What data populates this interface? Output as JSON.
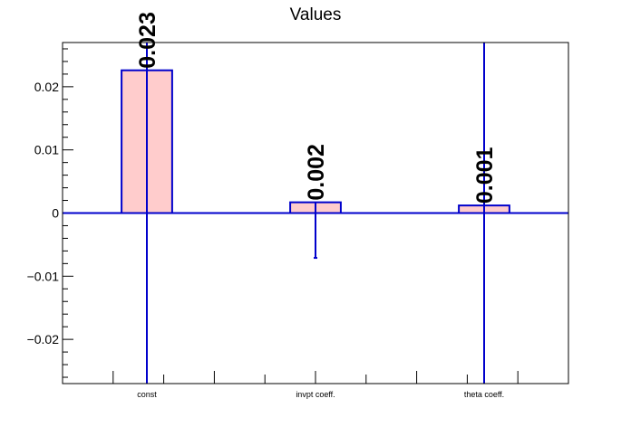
{
  "chart_data": {
    "type": "bar",
    "title": "Values",
    "categories": [
      "const",
      "invpt coeff.",
      "theta coeff."
    ],
    "values": [
      0.0226,
      0.0017,
      0.0012
    ],
    "value_labels": [
      "0.023",
      "0.002",
      "0.001"
    ],
    "error_low": [
      -0.027,
      -0.0071,
      -0.027
    ],
    "error_high": [
      0.027,
      0.0017,
      0.027
    ],
    "ylim": [
      -0.027,
      0.027
    ],
    "yticks": [
      -0.02,
      -0.01,
      0,
      0.01,
      0.02
    ],
    "ytick_labels": [
      "−0.02",
      "−0.01",
      "0",
      "0.01",
      "0.02"
    ],
    "xlabel": "",
    "ylabel": "",
    "colors": {
      "bar_fill": "#ffcccc",
      "bar_edge": "#0000cc",
      "error_bar": "#0000cc",
      "axis": "#000000"
    }
  }
}
